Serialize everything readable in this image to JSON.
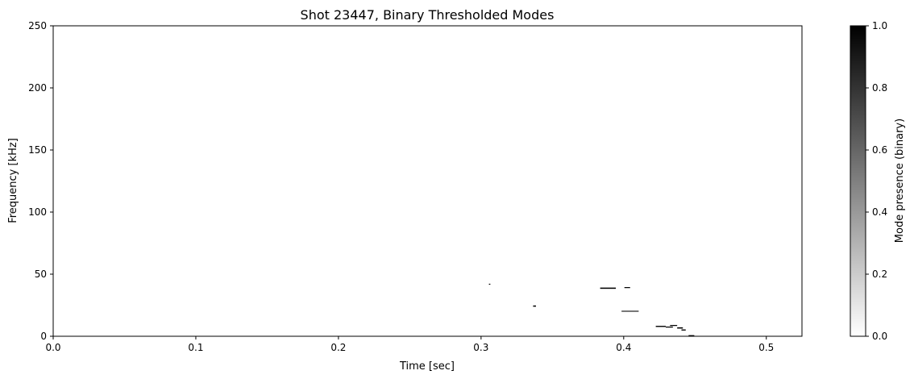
{
  "chart_data": {
    "type": "heatmap",
    "title": "Shot 23447, Binary Thresholded Modes",
    "xlabel": "Time [sec]",
    "ylabel": "Frequency [kHz]",
    "xlim": [
      0.0,
      0.525
    ],
    "ylim": [
      0,
      250
    ],
    "x_ticks": [
      0.0,
      0.1,
      0.2,
      0.3,
      0.4,
      0.5
    ],
    "x_tick_labels": [
      "0.0",
      "0.1",
      "0.2",
      "0.3",
      "0.4",
      "0.5"
    ],
    "y_ticks": [
      0,
      50,
      100,
      150,
      200,
      250
    ],
    "y_tick_labels": [
      "0",
      "50",
      "100",
      "150",
      "200",
      "250"
    ],
    "colormap": "gray_r",
    "grid": false,
    "colorbar": {
      "label": "Mode presence (binary)",
      "range": [
        0.0,
        1.0
      ],
      "ticks": [
        0.0,
        0.2,
        0.4,
        0.6,
        0.8,
        1.0
      ],
      "tick_labels": [
        "0.0",
        "0.2",
        "0.4",
        "0.6",
        "0.8",
        "1.0"
      ]
    },
    "mode_segments": [
      {
        "t_start": 0.3055,
        "t_end": 0.3065,
        "f_low": 41.5,
        "f_high": 42.3,
        "value": 1
      },
      {
        "t_start": 0.3365,
        "t_end": 0.3385,
        "f_low": 23.8,
        "f_high": 24.8,
        "value": 1
      },
      {
        "t_start": 0.3835,
        "t_end": 0.3945,
        "f_low": 38.2,
        "f_high": 39.2,
        "value": 1
      },
      {
        "t_start": 0.4005,
        "t_end": 0.4045,
        "f_low": 38.8,
        "f_high": 39.6,
        "value": 1
      },
      {
        "t_start": 0.3985,
        "t_end": 0.4105,
        "f_low": 19.8,
        "f_high": 20.5,
        "value": 1
      },
      {
        "t_start": 0.4225,
        "t_end": 0.4295,
        "f_low": 7.5,
        "f_high": 8.4,
        "value": 1
      },
      {
        "t_start": 0.4295,
        "t_end": 0.4345,
        "f_low": 7.0,
        "f_high": 7.8,
        "value": 1
      },
      {
        "t_start": 0.4325,
        "t_end": 0.4375,
        "f_low": 8.3,
        "f_high": 9.1,
        "value": 1
      },
      {
        "t_start": 0.4375,
        "t_end": 0.4415,
        "f_low": 6.2,
        "f_high": 7.2,
        "value": 1
      },
      {
        "t_start": 0.4405,
        "t_end": 0.4435,
        "f_low": 4.6,
        "f_high": 5.5,
        "value": 1
      },
      {
        "t_start": 0.4455,
        "t_end": 0.4495,
        "f_low": 0.0,
        "f_high": 0.9,
        "value": 1
      }
    ]
  }
}
